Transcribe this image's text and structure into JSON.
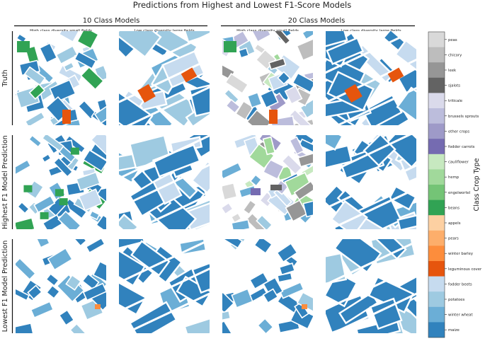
{
  "chart_data": {
    "type": "heatmap",
    "title": "Predictions from Highest and Lowest F1-Score Models",
    "group_titles": [
      "10 Class Models",
      "20 Class Models"
    ],
    "column_titles": [
      "High class diversity small fields",
      "Low class diversity large fields",
      "High class diversity small fields",
      "Low class diversity large fields"
    ],
    "row_labels": [
      "Truth",
      "Highest F1 Model Prediction",
      "Lowest F1 Model Prediction"
    ],
    "colorbar": {
      "label": "Class Crop Type",
      "classes": [
        {
          "name": "peas",
          "color": "#d9d9d9"
        },
        {
          "name": "chicory",
          "color": "#bdbdbd"
        },
        {
          "name": "leek",
          "color": "#969696"
        },
        {
          "name": "sjalots",
          "color": "#636363"
        },
        {
          "name": "triticale",
          "color": "#dadaeb"
        },
        {
          "name": "brussels sprouts",
          "color": "#bcbddc"
        },
        {
          "name": "other crops",
          "color": "#9e9ac8"
        },
        {
          "name": "fodder carrots",
          "color": "#756bb1"
        },
        {
          "name": "cauliflower",
          "color": "#c7e9c0"
        },
        {
          "name": "hemp",
          "color": "#a1d99b"
        },
        {
          "name": "engelwortel",
          "color": "#74c476"
        },
        {
          "name": "beans",
          "color": "#31a354"
        },
        {
          "name": "appels",
          "color": "#fdd0a2"
        },
        {
          "name": "pears",
          "color": "#fdae6b"
        },
        {
          "name": "winter barley",
          "color": "#fd8d3c"
        },
        {
          "name": "leguminous cover",
          "color": "#e6550d"
        },
        {
          "name": "fodder beets",
          "color": "#c6dbef"
        },
        {
          "name": "potatoes",
          "color": "#9ecae1"
        },
        {
          "name": "winter wheat",
          "color": "#6baed6"
        },
        {
          "name": "maize",
          "color": "#3182bd"
        }
      ]
    }
  }
}
